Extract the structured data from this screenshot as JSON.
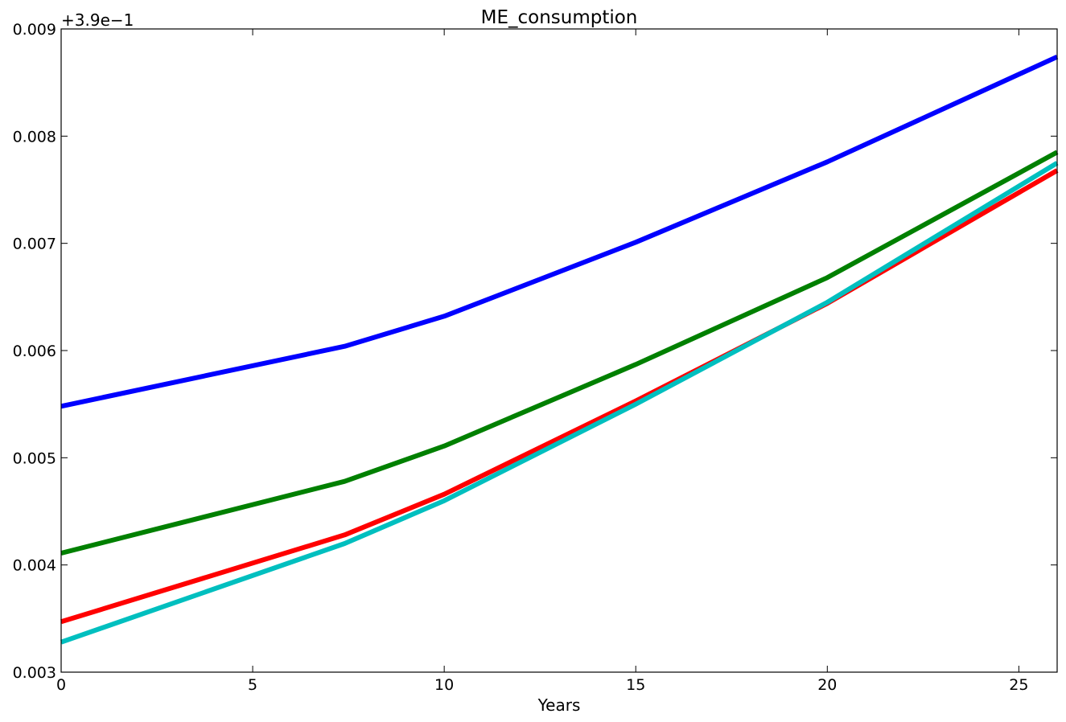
{
  "chart_data": {
    "type": "line",
    "title": "ME_consumption",
    "xlabel": "Years",
    "ylabel": "",
    "offset_text": "+3.9e−1",
    "xlim": [
      0,
      26
    ],
    "ylim": [
      0.003,
      0.009
    ],
    "x_ticks": [
      0,
      5,
      10,
      15,
      20,
      25
    ],
    "x_tick_labels": [
      "0",
      "5",
      "10",
      "15",
      "20",
      "25"
    ],
    "y_ticks": [
      0.003,
      0.004,
      0.005,
      0.006,
      0.007,
      0.008,
      0.009
    ],
    "y_tick_labels": [
      "0.003",
      "0.004",
      "0.005",
      "0.006",
      "0.007",
      "0.008",
      "0.009"
    ],
    "grid": false,
    "legend": "none",
    "series": [
      {
        "color": "#0000ff",
        "x": [
          0,
          7.4,
          10,
          15,
          20,
          26
        ],
        "y": [
          0.00548,
          0.00604,
          0.00632,
          0.00701,
          0.00776,
          0.00874
        ]
      },
      {
        "color": "#008000",
        "x": [
          0,
          7.4,
          10,
          15,
          20,
          26
        ],
        "y": [
          0.00411,
          0.00478,
          0.00511,
          0.00587,
          0.00668,
          0.00785
        ]
      },
      {
        "color": "#ff0000",
        "x": [
          0,
          7.4,
          10,
          15,
          20,
          26
        ],
        "y": [
          0.00347,
          0.00428,
          0.00466,
          0.00553,
          0.00644,
          0.00768
        ]
      },
      {
        "color": "#00bfbf",
        "x": [
          0,
          7.4,
          10,
          15,
          20,
          26
        ],
        "y": [
          0.00328,
          0.0042,
          0.0046,
          0.0055,
          0.00645,
          0.00775
        ]
      }
    ]
  }
}
